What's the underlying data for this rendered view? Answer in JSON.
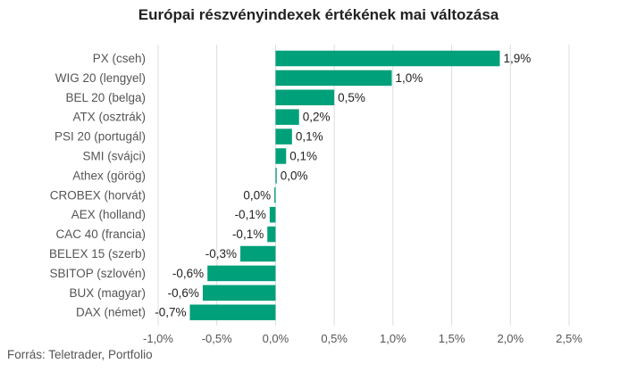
{
  "title": "Európai részvényindexek értékének mai változása",
  "source": "Forrás: Teletrader, Portfolio",
  "chart_data": {
    "type": "bar",
    "orientation": "horizontal",
    "title": "Európai részvényindexek értékének mai változása",
    "xlabel": "",
    "ylabel": "",
    "xlim": [
      -1.0,
      2.5
    ],
    "grid": true,
    "bar_color": "#00a07a",
    "categories": [
      "PX (cseh)",
      "WIG 20 (lengyel)",
      "BEL 20 (belga)",
      "ATX (osztrák)",
      "PSI 20 (portugál)",
      "SMI (svájci)",
      "Athex (görög)",
      "CROBEX (horvát)",
      "AEX (holland)",
      "CAC 40 (francia)",
      "BELEX 15 (szerb)",
      "SBITOP (szlovén)",
      "BUX (magyar)",
      "DAX (német)"
    ],
    "values": [
      1.9,
      1.0,
      0.5,
      0.2,
      0.1,
      0.1,
      0.0,
      0.0,
      -0.1,
      -0.1,
      -0.3,
      -0.6,
      -0.6,
      -0.7
    ],
    "bar_values": [
      1.91,
      0.99,
      0.5,
      0.2,
      0.14,
      0.09,
      0.01,
      -0.01,
      -0.05,
      -0.07,
      -0.3,
      -0.58,
      -0.62,
      -0.73
    ],
    "data_labels": [
      "1,9%",
      "1,0%",
      "0,5%",
      "0,2%",
      "0,1%",
      "0,1%",
      "0,0%",
      "0,0%",
      "-0,1%",
      "-0,1%",
      "-0,3%",
      "-0,6%",
      "-0,6%",
      "-0,7%"
    ],
    "x_ticks": [
      -1.0,
      -0.5,
      0.0,
      0.5,
      1.0,
      1.5,
      2.0,
      2.5
    ],
    "x_tick_labels": [
      "-1,0%",
      "-0,5%",
      "0,0%",
      "0,5%",
      "1,0%",
      "1,5%",
      "2,0%",
      "2,5%"
    ]
  }
}
